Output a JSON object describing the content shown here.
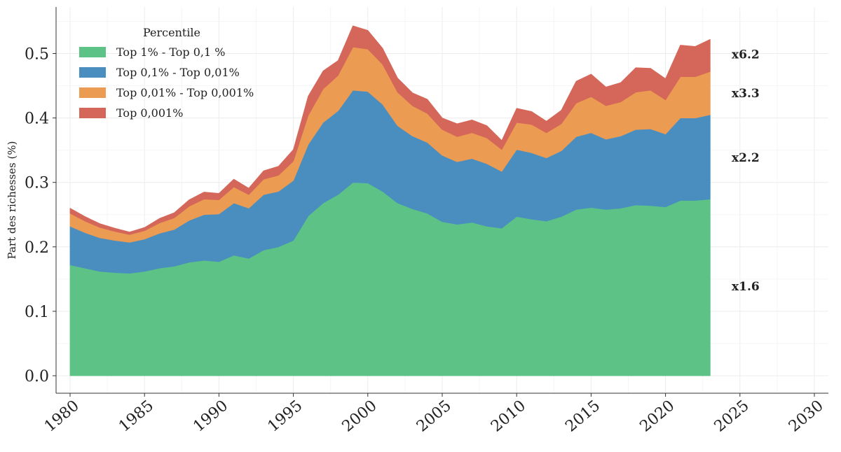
{
  "chart_data": {
    "type": "area",
    "stacked": true,
    "ylabel": "Part des richesses (%)",
    "xlabel": "",
    "xlim": [
      1980,
      2030
    ],
    "ylim": [
      0,
      0.55
    ],
    "xticks": [
      1980,
      1985,
      1990,
      1995,
      2000,
      2005,
      2010,
      2015,
      2020,
      2025,
      2030
    ],
    "xtick_labels": [
      "1980",
      "1985",
      "1990",
      "1995",
      "2000",
      "2005",
      "2010",
      "2015",
      "2020",
      "2025",
      "2030"
    ],
    "yticks": [
      0.0,
      0.1,
      0.2,
      0.3,
      0.4,
      0.5
    ],
    "ytick_labels": [
      "0.0",
      "0.1",
      "0.2",
      "0.3",
      "0.4",
      "0.5"
    ],
    "grid": true,
    "legend": {
      "title": "Percentile",
      "placement": "top-left"
    },
    "x": [
      1980,
      1981,
      1982,
      1983,
      1984,
      1985,
      1986,
      1987,
      1988,
      1989,
      1990,
      1991,
      1992,
      1993,
      1994,
      1995,
      1996,
      1997,
      1998,
      1999,
      2000,
      2001,
      2002,
      2003,
      2004,
      2005,
      2006,
      2007,
      2008,
      2009,
      2010,
      2011,
      2012,
      2013,
      2014,
      2015,
      2016,
      2017,
      2018,
      2019,
      2020,
      2021,
      2022,
      2023
    ],
    "series": [
      {
        "name": "Top 1% - Top 0,1 %",
        "color": "#5cc285",
        "values": [
          0.172,
          0.167,
          0.162,
          0.16,
          0.159,
          0.162,
          0.167,
          0.17,
          0.176,
          0.179,
          0.177,
          0.187,
          0.182,
          0.195,
          0.2,
          0.21,
          0.248,
          0.268,
          0.281,
          0.3,
          0.299,
          0.286,
          0.268,
          0.259,
          0.252,
          0.239,
          0.235,
          0.238,
          0.232,
          0.229,
          0.247,
          0.243,
          0.24,
          0.247,
          0.258,
          0.261,
          0.258,
          0.26,
          0.265,
          0.264,
          0.262,
          0.272,
          0.272,
          0.274
        ]
      },
      {
        "name": "Top 0,1% - Top 0,01%",
        "color": "#4a8ec0",
        "values": [
          0.06,
          0.055,
          0.052,
          0.05,
          0.048,
          0.05,
          0.054,
          0.057,
          0.065,
          0.071,
          0.074,
          0.081,
          0.078,
          0.086,
          0.086,
          0.093,
          0.111,
          0.125,
          0.13,
          0.143,
          0.142,
          0.135,
          0.12,
          0.113,
          0.11,
          0.103,
          0.097,
          0.099,
          0.097,
          0.088,
          0.104,
          0.103,
          0.098,
          0.102,
          0.113,
          0.116,
          0.109,
          0.112,
          0.117,
          0.119,
          0.113,
          0.128,
          0.128,
          0.131
        ]
      },
      {
        "name": "Top 0,01% - Top 0,001%",
        "color": "#eb9b52",
        "values": [
          0.02,
          0.018,
          0.016,
          0.014,
          0.012,
          0.013,
          0.016,
          0.018,
          0.022,
          0.024,
          0.022,
          0.025,
          0.021,
          0.024,
          0.025,
          0.03,
          0.045,
          0.052,
          0.055,
          0.067,
          0.066,
          0.062,
          0.052,
          0.047,
          0.045,
          0.04,
          0.039,
          0.04,
          0.04,
          0.034,
          0.042,
          0.044,
          0.039,
          0.042,
          0.052,
          0.056,
          0.052,
          0.053,
          0.058,
          0.06,
          0.053,
          0.064,
          0.064,
          0.067
        ]
      },
      {
        "name": "Top 0,001%",
        "color": "#d4675a",
        "values": [
          0.008,
          0.007,
          0.006,
          0.005,
          0.004,
          0.005,
          0.007,
          0.008,
          0.01,
          0.011,
          0.01,
          0.012,
          0.01,
          0.013,
          0.014,
          0.018,
          0.03,
          0.028,
          0.023,
          0.033,
          0.029,
          0.025,
          0.022,
          0.02,
          0.022,
          0.018,
          0.02,
          0.02,
          0.019,
          0.014,
          0.022,
          0.02,
          0.018,
          0.021,
          0.034,
          0.035,
          0.029,
          0.03,
          0.038,
          0.034,
          0.033,
          0.049,
          0.047,
          0.05
        ]
      }
    ],
    "annotations": [
      {
        "text": "x6.2",
        "series": "Top 0,001%"
      },
      {
        "text": "x3.3",
        "series": "Top 0,01% - Top 0,001%"
      },
      {
        "text": "x2.2",
        "series": "Top 0,1% - Top 0,01%"
      },
      {
        "text": "x1.6",
        "series": "Top 1% - Top 0,1 %"
      }
    ]
  }
}
